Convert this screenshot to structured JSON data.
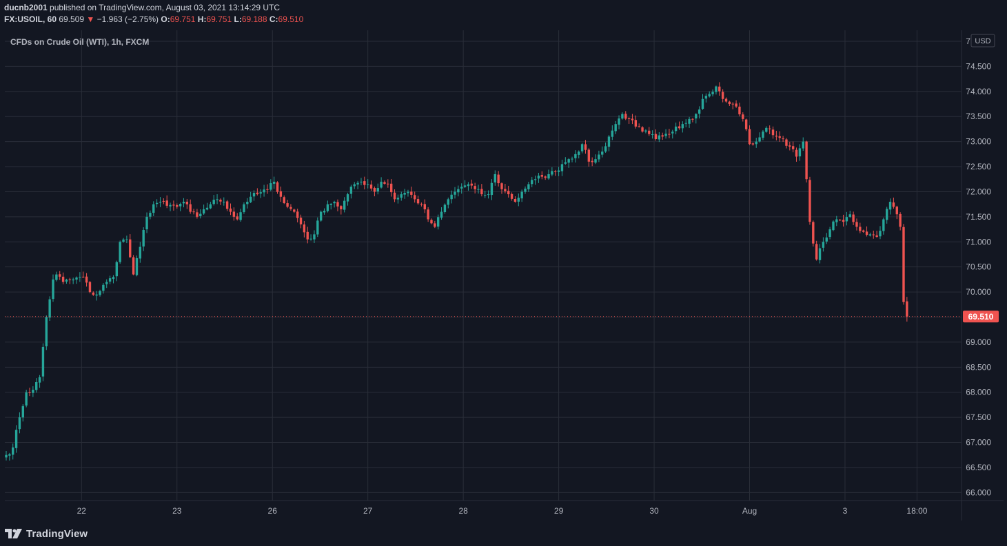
{
  "header": {
    "publisher": "ducnb2001",
    "published_text": "published on TradingView.com, August 03, 2021 13:14:29 UTC",
    "symbol": "FX:USOIL, 60",
    "last": "69.509",
    "change_arrow": "▼",
    "change": "−1.963 (−2.75%)",
    "o_label": "O:",
    "o_value": "69.751",
    "h_label": "H:",
    "h_value": "69.751",
    "l_label": "L:",
    "l_value": "69.188",
    "c_label": "C:",
    "c_value": "69.510"
  },
  "footer": {
    "brand": "TradingView",
    "logo_icon": "tradingview-logo-icon"
  },
  "chart_data": {
    "type": "candlestick",
    "title": "CFDs on Crude Oil (WTI), 1h, FXCM",
    "currency": "USD",
    "last_price": 69.51,
    "last_price_label": "69.510",
    "ylim": [
      65.84,
      75.22
    ],
    "y_ticks": [
      "66.000",
      "66.500",
      "67.000",
      "67.500",
      "68.000",
      "68.500",
      "69.000",
      "69.500",
      "70.000",
      "70.500",
      "71.000",
      "71.500",
      "72.000",
      "72.500",
      "73.000",
      "73.500",
      "74.000",
      "74.500",
      "75.000"
    ],
    "x_ticks": [
      {
        "label": "22",
        "index": 22.5
      },
      {
        "label": "23",
        "index": 51
      },
      {
        "label": "26",
        "index": 79.5
      },
      {
        "label": "27",
        "index": 108
      },
      {
        "label": "28",
        "index": 136.5
      },
      {
        "label": "29",
        "index": 165
      },
      {
        "label": "30",
        "index": 193.5
      },
      {
        "label": "Aug",
        "index": 222
      },
      {
        "label": "3",
        "index": 250.5
      },
      {
        "label": "18:00",
        "index": 272
      }
    ],
    "x_count": 283,
    "grid": true,
    "colors": {
      "up": "#26a69a",
      "down": "#ef5350",
      "background": "#131722",
      "grid": "#2a2e39",
      "text": "#b2b5be"
    },
    "anchors": [
      [
        0,
        66.75
      ],
      [
        2,
        66.9
      ],
      [
        4,
        67.5
      ],
      [
        6,
        68.0
      ],
      [
        8,
        68.05
      ],
      [
        10,
        68.3
      ],
      [
        12,
        69.5
      ],
      [
        14,
        70.25
      ],
      [
        15,
        70.35
      ],
      [
        17,
        70.2
      ],
      [
        20,
        70.25
      ],
      [
        23,
        70.3
      ],
      [
        25,
        70.0
      ],
      [
        27,
        69.95
      ],
      [
        30,
        70.2
      ],
      [
        32,
        70.3
      ],
      [
        34,
        71.0
      ],
      [
        36,
        71.05
      ],
      [
        38,
        70.35
      ],
      [
        40,
        70.9
      ],
      [
        42,
        71.5
      ],
      [
        44,
        71.75
      ],
      [
        46,
        71.8
      ],
      [
        48,
        71.72
      ],
      [
        51,
        71.7
      ],
      [
        53,
        71.8
      ],
      [
        55,
        71.6
      ],
      [
        57,
        71.5
      ],
      [
        59,
        71.65
      ],
      [
        61,
        71.75
      ],
      [
        63,
        71.85
      ],
      [
        65,
        71.8
      ],
      [
        67,
        71.6
      ],
      [
        69,
        71.45
      ],
      [
        71,
        71.75
      ],
      [
        73,
        71.9
      ],
      [
        75,
        71.95
      ],
      [
        78,
        72.05
      ],
      [
        80,
        72.2
      ],
      [
        82,
        71.9
      ],
      [
        84,
        71.7
      ],
      [
        86,
        71.6
      ],
      [
        88,
        71.35
      ],
      [
        90,
        71.05
      ],
      [
        92,
        71.15
      ],
      [
        94,
        71.6
      ],
      [
        96,
        71.75
      ],
      [
        98,
        71.8
      ],
      [
        100,
        71.65
      ],
      [
        102,
        71.95
      ],
      [
        104,
        72.15
      ],
      [
        106,
        72.2
      ],
      [
        108,
        72.15
      ],
      [
        110,
        72.0
      ],
      [
        112,
        72.2
      ],
      [
        114,
        72.15
      ],
      [
        116,
        71.85
      ],
      [
        118,
        71.95
      ],
      [
        120,
        72.0
      ],
      [
        122,
        71.85
      ],
      [
        124,
        71.75
      ],
      [
        126,
        71.45
      ],
      [
        128,
        71.3
      ],
      [
        130,
        71.6
      ],
      [
        132,
        71.85
      ],
      [
        134,
        72.0
      ],
      [
        136,
        72.1
      ],
      [
        138,
        72.15
      ],
      [
        140,
        72.05
      ],
      [
        142,
        71.95
      ],
      [
        144,
        71.95
      ],
      [
        146,
        72.35
      ],
      [
        148,
        72.05
      ],
      [
        150,
        71.95
      ],
      [
        152,
        71.8
      ],
      [
        154,
        72.0
      ],
      [
        156,
        72.15
      ],
      [
        158,
        72.25
      ],
      [
        160,
        72.3
      ],
      [
        162,
        72.35
      ],
      [
        164,
        72.4
      ],
      [
        166,
        72.55
      ],
      [
        168,
        72.65
      ],
      [
        170,
        72.75
      ],
      [
        172,
        72.95
      ],
      [
        174,
        72.6
      ],
      [
        176,
        72.65
      ],
      [
        178,
        72.8
      ],
      [
        180,
        73.1
      ],
      [
        182,
        73.35
      ],
      [
        184,
        73.55
      ],
      [
        186,
        73.45
      ],
      [
        188,
        73.3
      ],
      [
        190,
        73.2
      ],
      [
        192,
        73.15
      ],
      [
        194,
        73.05
      ],
      [
        196,
        73.1
      ],
      [
        198,
        73.15
      ],
      [
        200,
        73.3
      ],
      [
        202,
        73.35
      ],
      [
        204,
        73.45
      ],
      [
        206,
        73.55
      ],
      [
        208,
        73.85
      ],
      [
        210,
        73.95
      ],
      [
        212,
        74.1
      ],
      [
        214,
        73.85
      ],
      [
        216,
        73.75
      ],
      [
        218,
        73.7
      ],
      [
        220,
        73.45
      ],
      [
        222,
        72.95
      ],
      [
        224,
        73.0
      ],
      [
        226,
        73.2
      ],
      [
        228,
        73.25
      ],
      [
        230,
        73.1
      ],
      [
        232,
        73.05
      ],
      [
        234,
        72.9
      ],
      [
        236,
        72.7
      ],
      [
        238,
        73.0
      ],
      [
        240,
        71.4
      ],
      [
        242,
        70.65
      ],
      [
        244,
        71.0
      ],
      [
        246,
        71.25
      ],
      [
        248,
        71.45
      ],
      [
        250,
        71.4
      ],
      [
        252,
        71.55
      ],
      [
        254,
        71.3
      ],
      [
        256,
        71.2
      ],
      [
        258,
        71.15
      ],
      [
        260,
        71.1
      ],
      [
        262,
        71.45
      ],
      [
        264,
        71.8
      ],
      [
        266,
        71.55
      ],
      [
        267,
        71.3
      ],
      [
        268,
        69.8
      ],
      [
        269,
        69.51
      ]
    ]
  }
}
